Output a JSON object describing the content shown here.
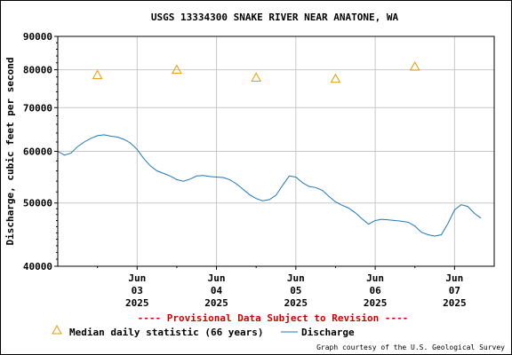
{
  "chart_data": {
    "type": "line",
    "title": "USGS 13334300 SNAKE RIVER NEAR ANATONE, WA",
    "ylabel": "Discharge, cubic feet per second",
    "xlabel": "",
    "y_scale": "log",
    "ylim": [
      40000,
      90000
    ],
    "y_ticks": [
      {
        "value": 40000,
        "label": "40000"
      },
      {
        "value": 50000,
        "label": "50000"
      },
      {
        "value": 60000,
        "label": "60000"
      },
      {
        "value": 70000,
        "label": "70000"
      },
      {
        "value": 80000,
        "label": "80000"
      },
      {
        "value": 90000,
        "label": "90000"
      }
    ],
    "xlim": [
      "2025-06-02 00:00",
      "2025-06-07 12:00"
    ],
    "x_ticks": [
      {
        "x": "2025-06-03 00:00",
        "month": "Jun",
        "day": "03",
        "year": "2025"
      },
      {
        "x": "2025-06-04 00:00",
        "month": "Jun",
        "day": "04",
        "year": "2025"
      },
      {
        "x": "2025-06-05 00:00",
        "month": "Jun",
        "day": "05",
        "year": "2025"
      },
      {
        "x": "2025-06-06 00:00",
        "month": "Jun",
        "day": "06",
        "year": "2025"
      },
      {
        "x": "2025-06-07 00:00",
        "month": "Jun",
        "day": "07",
        "year": "2025"
      }
    ],
    "grid": true,
    "series": [
      {
        "name": "Discharge",
        "color": "#1f77b4",
        "points": [
          {
            "x": "2025-06-02 00:00",
            "y": 60000
          },
          {
            "x": "2025-06-02 02:00",
            "y": 59200
          },
          {
            "x": "2025-06-02 04:00",
            "y": 59600
          },
          {
            "x": "2025-06-02 06:00",
            "y": 61000
          },
          {
            "x": "2025-06-02 08:00",
            "y": 62000
          },
          {
            "x": "2025-06-02 10:00",
            "y": 62800
          },
          {
            "x": "2025-06-02 12:00",
            "y": 63400
          },
          {
            "x": "2025-06-02 14:00",
            "y": 63600
          },
          {
            "x": "2025-06-02 16:00",
            "y": 63300
          },
          {
            "x": "2025-06-02 18:00",
            "y": 63100
          },
          {
            "x": "2025-06-02 20:00",
            "y": 62600
          },
          {
            "x": "2025-06-02 22:00",
            "y": 61800
          },
          {
            "x": "2025-06-03 00:00",
            "y": 60400
          },
          {
            "x": "2025-06-03 02:00",
            "y": 58500
          },
          {
            "x": "2025-06-03 04:00",
            "y": 57000
          },
          {
            "x": "2025-06-03 06:00",
            "y": 56000
          },
          {
            "x": "2025-06-03 08:00",
            "y": 55500
          },
          {
            "x": "2025-06-03 10:00",
            "y": 55000
          },
          {
            "x": "2025-06-03 12:00",
            "y": 54300
          },
          {
            "x": "2025-06-03 14:00",
            "y": 54000
          },
          {
            "x": "2025-06-03 16:00",
            "y": 54400
          },
          {
            "x": "2025-06-03 18:00",
            "y": 55000
          },
          {
            "x": "2025-06-03 20:00",
            "y": 55100
          },
          {
            "x": "2025-06-03 22:00",
            "y": 54900
          },
          {
            "x": "2025-06-04 00:00",
            "y": 54800
          },
          {
            "x": "2025-06-04 02:00",
            "y": 54700
          },
          {
            "x": "2025-06-04 04:00",
            "y": 54300
          },
          {
            "x": "2025-06-04 06:00",
            "y": 53500
          },
          {
            "x": "2025-06-04 08:00",
            "y": 52500
          },
          {
            "x": "2025-06-04 10:00",
            "y": 51500
          },
          {
            "x": "2025-06-04 12:00",
            "y": 50800
          },
          {
            "x": "2025-06-04 14:00",
            "y": 50400
          },
          {
            "x": "2025-06-04 16:00",
            "y": 50600
          },
          {
            "x": "2025-06-04 18:00",
            "y": 51400
          },
          {
            "x": "2025-06-04 20:00",
            "y": 53200
          },
          {
            "x": "2025-06-04 22:00",
            "y": 55000
          },
          {
            "x": "2025-06-05 00:00",
            "y": 54800
          },
          {
            "x": "2025-06-05 02:00",
            "y": 53700
          },
          {
            "x": "2025-06-05 04:00",
            "y": 53000
          },
          {
            "x": "2025-06-05 06:00",
            "y": 52800
          },
          {
            "x": "2025-06-05 08:00",
            "y": 52300
          },
          {
            "x": "2025-06-05 10:00",
            "y": 51200
          },
          {
            "x": "2025-06-05 12:00",
            "y": 50200
          },
          {
            "x": "2025-06-05 14:00",
            "y": 49600
          },
          {
            "x": "2025-06-05 16:00",
            "y": 49100
          },
          {
            "x": "2025-06-05 18:00",
            "y": 48300
          },
          {
            "x": "2025-06-05 20:00",
            "y": 47300
          },
          {
            "x": "2025-06-05 22:00",
            "y": 46400
          },
          {
            "x": "2025-06-06 00:00",
            "y": 47000
          },
          {
            "x": "2025-06-06 02:00",
            "y": 47200
          },
          {
            "x": "2025-06-06 04:00",
            "y": 47100
          },
          {
            "x": "2025-06-06 06:00",
            "y": 47000
          },
          {
            "x": "2025-06-06 08:00",
            "y": 46900
          },
          {
            "x": "2025-06-06 10:00",
            "y": 46700
          },
          {
            "x": "2025-06-06 12:00",
            "y": 46100
          },
          {
            "x": "2025-06-06 14:00",
            "y": 45100
          },
          {
            "x": "2025-06-06 16:00",
            "y": 44700
          },
          {
            "x": "2025-06-06 18:00",
            "y": 44500
          },
          {
            "x": "2025-06-06 20:00",
            "y": 44700
          },
          {
            "x": "2025-06-06 22:00",
            "y": 46500
          },
          {
            "x": "2025-06-07 00:00",
            "y": 48800
          },
          {
            "x": "2025-06-07 02:00",
            "y": 49700
          },
          {
            "x": "2025-06-07 04:00",
            "y": 49400
          },
          {
            "x": "2025-06-07 06:00",
            "y": 48200
          },
          {
            "x": "2025-06-07 08:00",
            "y": 47400
          }
        ]
      },
      {
        "name": "Median daily statistic (66 years)",
        "color": "#e69a00",
        "marker": "triangle",
        "points": [
          {
            "x": "2025-06-02 12:00",
            "y": 78500
          },
          {
            "x": "2025-06-03 12:00",
            "y": 80000
          },
          {
            "x": "2025-06-04 12:00",
            "y": 77800
          },
          {
            "x": "2025-06-05 12:00",
            "y": 77500
          },
          {
            "x": "2025-06-06 12:00",
            "y": 80900
          }
        ]
      }
    ],
    "provisional_note": "---- Provisional Data Subject to Revision ----",
    "provisional_color": "#cc0000",
    "legend": {
      "placement": "bottom-left",
      "median_label": "Median daily statistic (66 years)",
      "discharge_label": "Discharge"
    },
    "credit": "Graph courtesy of the U.S. Geological Survey"
  }
}
